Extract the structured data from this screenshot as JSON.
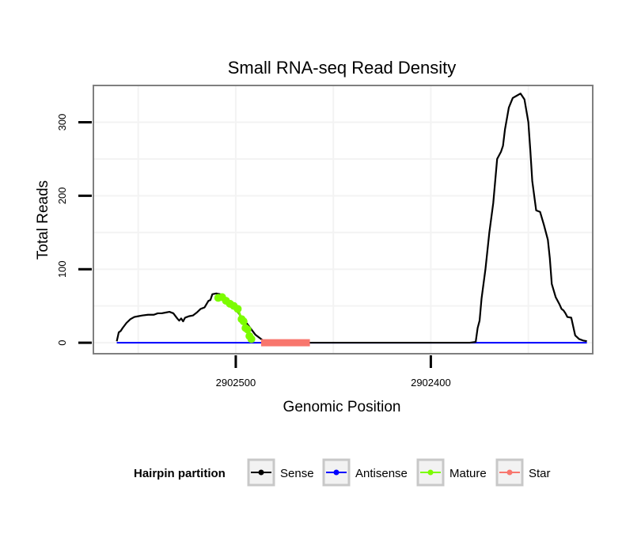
{
  "chart_data": {
    "type": "line",
    "title": "Small RNA-seq Read Density",
    "xlabel": "Genomic Position",
    "ylabel": "Total Reads",
    "x_reversed": true,
    "xlim": [
      2902573,
      2902317
    ],
    "ylim": [
      -15,
      350
    ],
    "x_ticks": [
      {
        "value": 2902500,
        "label": "2902500"
      },
      {
        "value": 2902400,
        "label": "2902400"
      }
    ],
    "y_ticks": [
      {
        "value": 0,
        "label": "0"
      },
      {
        "value": 100,
        "label": "100"
      },
      {
        "value": 200,
        "label": "200"
      },
      {
        "value": 300,
        "label": "300"
      }
    ],
    "grid": true,
    "legend": {
      "title": "Hairpin partition",
      "placement": "bottom",
      "entries": [
        {
          "name": "Sense",
          "color": "#000000"
        },
        {
          "name": "Antisense",
          "color": "#0000ff"
        },
        {
          "name": "Mature",
          "color": "#7cfc00"
        },
        {
          "name": "Star",
          "color": "#f8766d"
        }
      ]
    },
    "series": [
      {
        "name": "Sense",
        "color": "#000000",
        "x": [
          2902561,
          2902560,
          2902559,
          2902558,
          2902556,
          2902554,
          2902552,
          2902550,
          2902548,
          2902545,
          2902542,
          2902540,
          2902538,
          2902536,
          2902534,
          2902532,
          2902530,
          2902529,
          2902528,
          2902527,
          2902526,
          2902525,
          2902524,
          2902522,
          2902520,
          2902518,
          2902516,
          2902514,
          2902513,
          2902512,
          2902510,
          2902508,
          2902506,
          2902504,
          2902502,
          2902500,
          2902498,
          2902496,
          2902494,
          2902492,
          2902490,
          2902488,
          2902486,
          2902484,
          2902482,
          2902480,
          2902478,
          2902476,
          2902474,
          2902472,
          2902470,
          2902468,
          2902466,
          2902464,
          2902462,
          2902460,
          2902440,
          2902420,
          2902400,
          2902380,
          2902377,
          2902376,
          2902375,
          2902374,
          2902372,
          2902370,
          2902368,
          2902366,
          2902364,
          2902363,
          2902362,
          2902361,
          2902360,
          2902358,
          2902356,
          2902354,
          2902352,
          2902350,
          2902349,
          2902348,
          2902346,
          2902344,
          2902342,
          2902340,
          2902339,
          2902338,
          2902336,
          2902334,
          2902333,
          2902332,
          2902331,
          2902330,
          2902328,
          2902326,
          2902324,
          2902322,
          2902320
        ],
        "y": [
          2,
          14,
          16,
          20,
          27,
          32,
          35,
          36,
          37,
          38,
          38,
          40,
          40,
          41,
          42,
          40,
          33,
          30,
          33,
          29,
          34,
          35,
          36,
          37,
          41,
          46,
          48,
          57,
          58,
          66,
          67,
          66,
          62,
          56,
          50,
          46,
          38,
          32,
          25,
          18,
          11,
          7,
          3,
          1,
          0,
          0,
          0,
          0,
          0,
          0,
          0,
          0,
          0,
          0,
          0,
          0,
          0,
          0,
          0,
          0,
          1,
          20,
          30,
          60,
          100,
          150,
          190,
          250,
          260,
          268,
          290,
          305,
          320,
          333,
          336,
          339,
          331,
          300,
          262,
          220,
          180,
          178,
          160,
          140,
          115,
          80,
          62,
          52,
          46,
          44,
          40,
          35,
          34,
          10,
          5,
          3,
          2
        ]
      },
      {
        "name": "Antisense",
        "color": "#0000ff",
        "x": [
          2902561,
          2902320
        ],
        "y": [
          0,
          0
        ]
      },
      {
        "name": "Mature",
        "color": "#7cfc00",
        "x": [
          2902509,
          2902507,
          2902505,
          2902503,
          2902501,
          2902499,
          2902497,
          2902496,
          2902495,
          2902494,
          2902493,
          2902492
        ],
        "y": [
          61,
          62,
          57,
          53,
          50,
          46,
          32,
          29,
          20,
          18,
          9,
          5
        ]
      },
      {
        "name": "Star",
        "color": "#f8766d",
        "x": [
          2902487,
          2902462
        ],
        "y": [
          0,
          0
        ]
      }
    ]
  }
}
